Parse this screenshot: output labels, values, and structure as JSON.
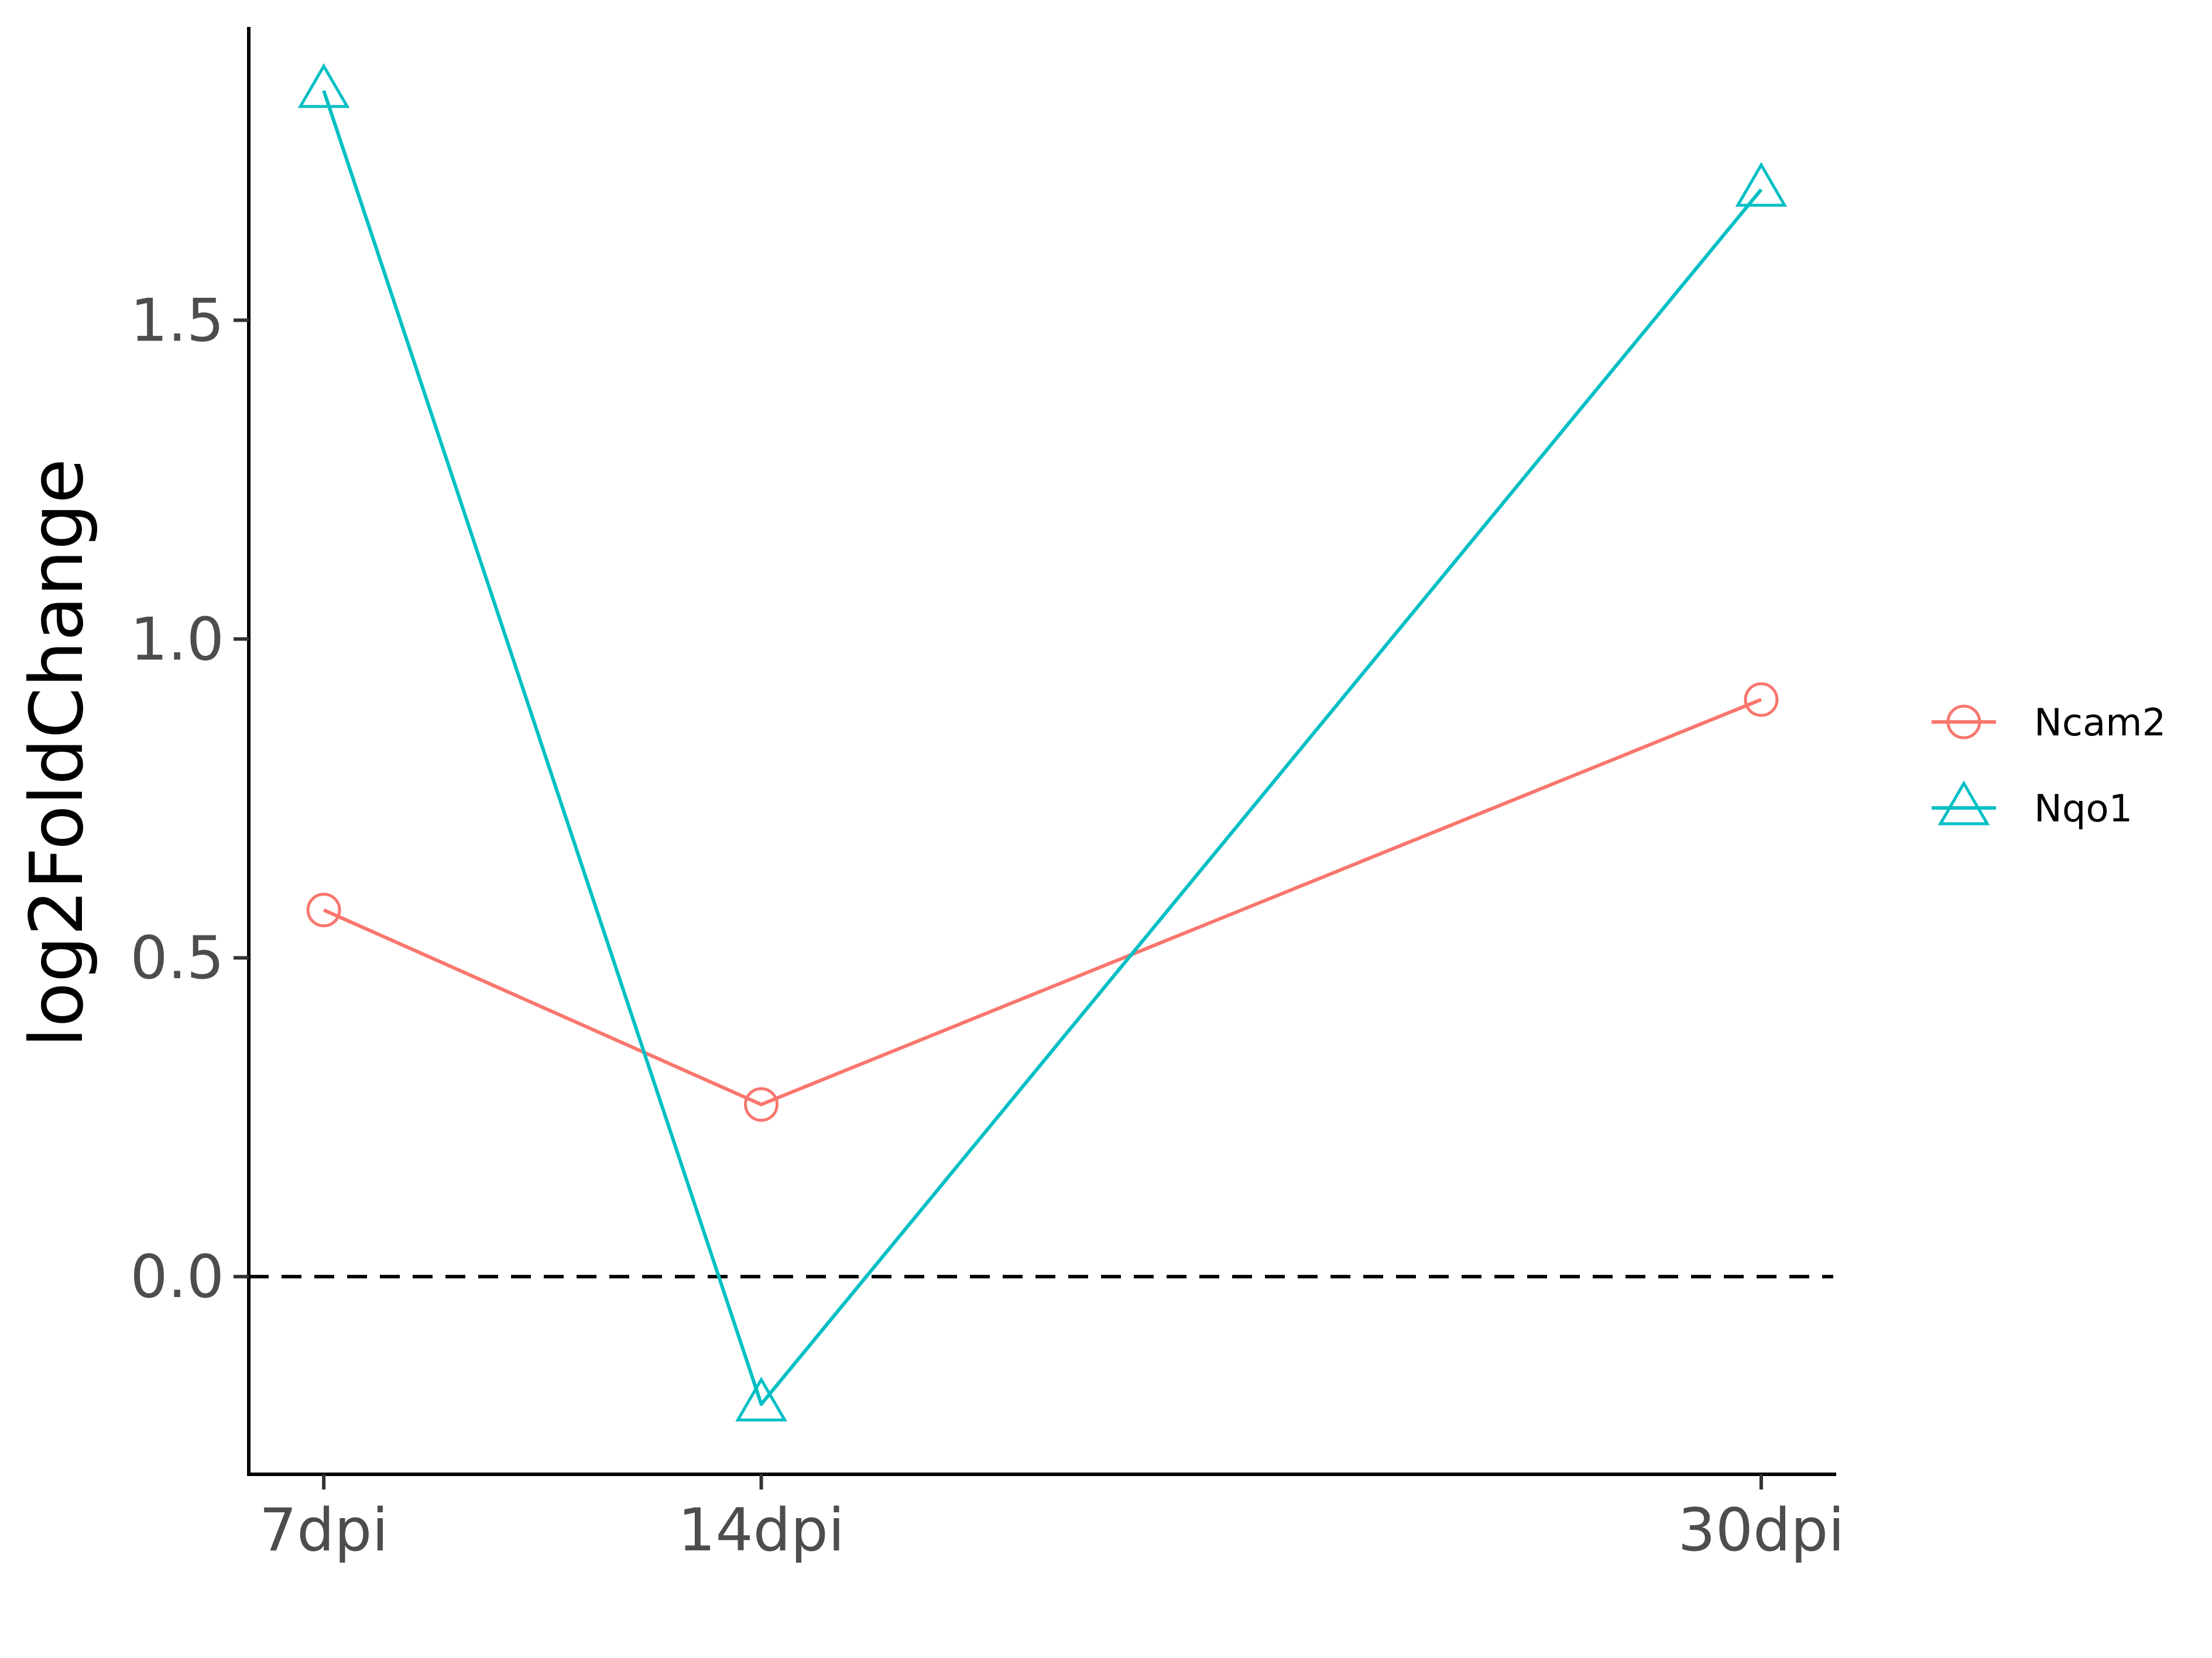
{
  "chart_data": {
    "type": "line",
    "categories": [
      "7dpi",
      "14dpi",
      "30dpi"
    ],
    "x": [
      7,
      14,
      30
    ],
    "xlabel": "",
    "ylabel": "log2FoldChange",
    "ylim": [
      -0.31,
      1.96
    ],
    "yticks": [
      0.0,
      0.5,
      1.0,
      1.5
    ],
    "ytick_labels": [
      "0.0",
      "0.5",
      "1.0",
      "1.5"
    ],
    "reference_line": {
      "y": 0,
      "style": "dashed",
      "color": "#000000"
    },
    "grid": false,
    "legend_position": "right",
    "series": [
      {
        "name": "Ncam2",
        "values": [
          0.575,
          0.27,
          0.905
        ],
        "color": "#F8766D",
        "marker": "circle"
      },
      {
        "name": "Nqo1",
        "values": [
          1.86,
          -0.2,
          1.705
        ],
        "color": "#00BFC4",
        "marker": "triangle"
      }
    ]
  }
}
